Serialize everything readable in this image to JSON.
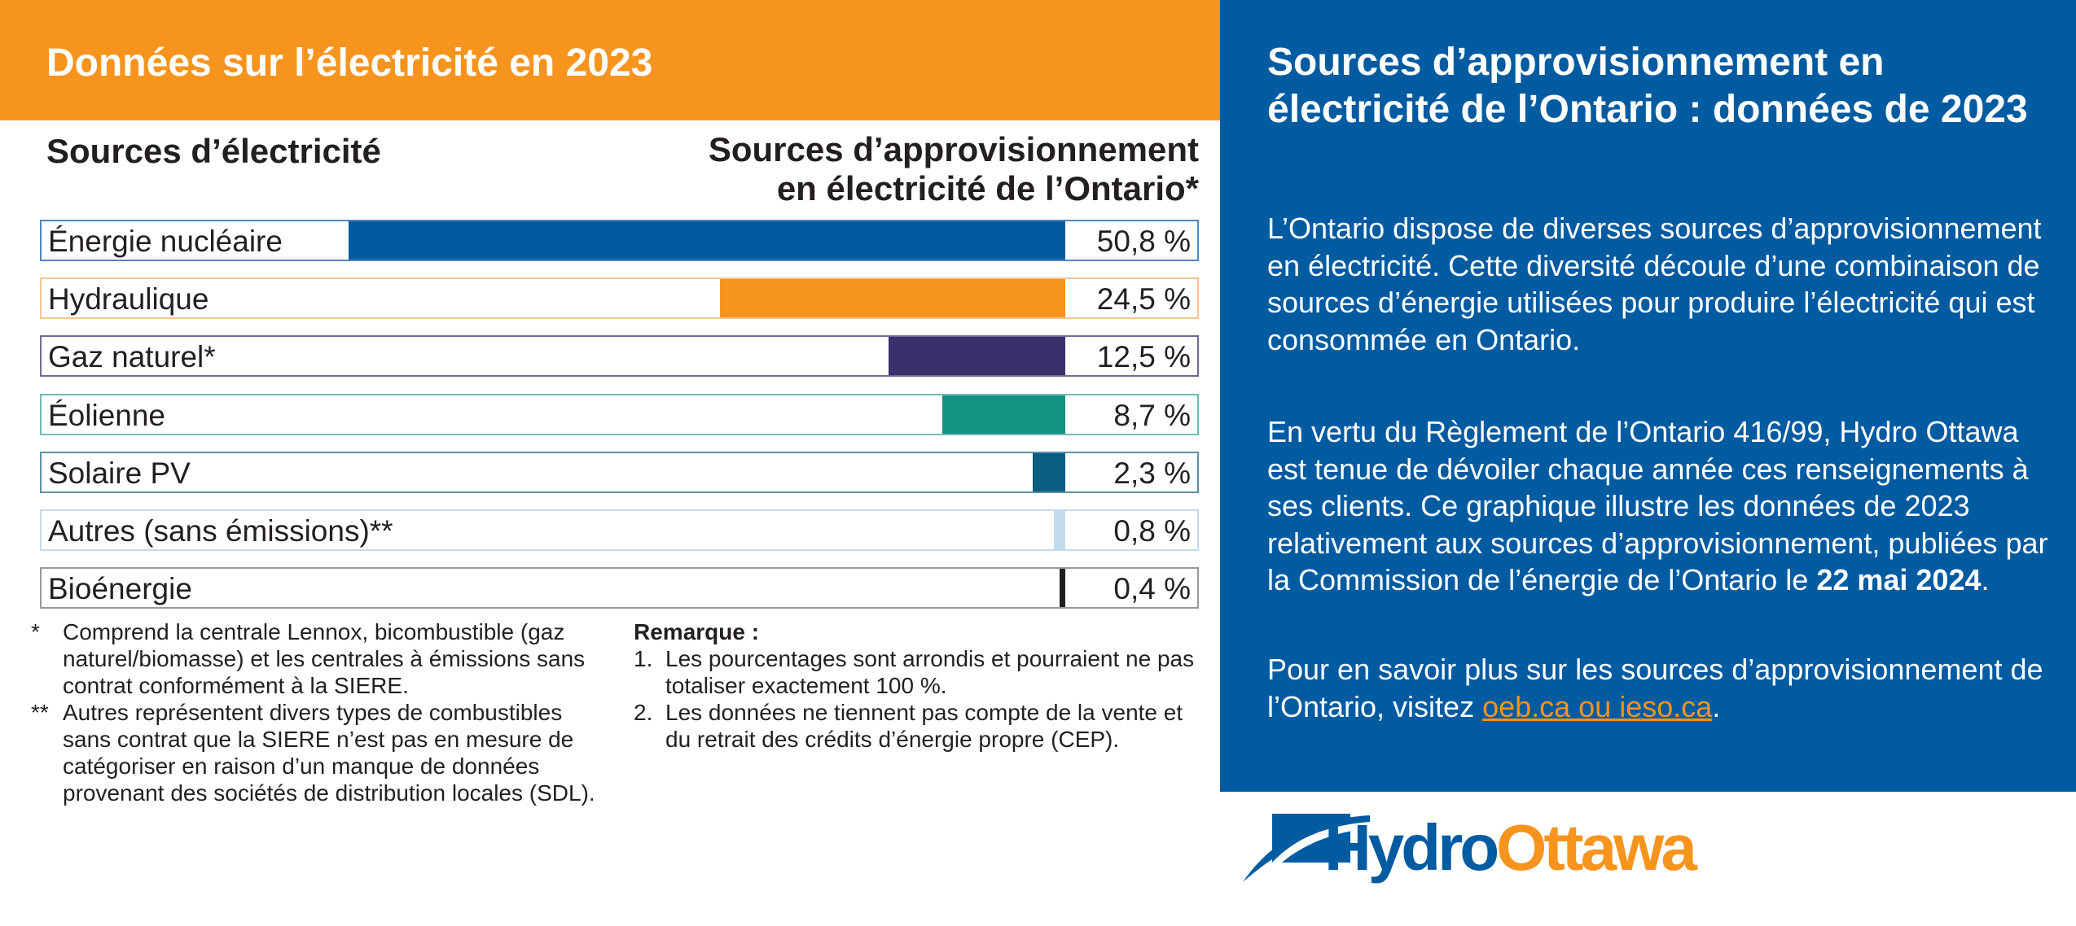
{
  "header": {
    "title": "Données sur l’électricité en 2023"
  },
  "chart_data": {
    "type": "bar",
    "orientation": "horizontal",
    "title_left": "Sources d’électricité",
    "title_right_line1": "Sources d’approvisionnement",
    "title_right_line2": "en électricité de l’Ontario*",
    "categories": [
      "Énergie nucléaire",
      "Hydraulique",
      "Gaz naturel*",
      "Éolienne",
      "Solaire PV",
      "Autres (sans émissions)**",
      "Bioénergie"
    ],
    "values": [
      50.8,
      24.5,
      12.5,
      8.7,
      2.3,
      0.8,
      0.4
    ],
    "labels": [
      "50,8 %",
      "24,5 %",
      "12,5 %",
      "8,7 %",
      "2,3 %",
      "0,8 %",
      "0,4 %"
    ],
    "colors": [
      "#005ba1",
      "#f7941e",
      "#3a2f6b",
      "#139181",
      "#0b5d82",
      "#c3dbee",
      "#1f1f1f"
    ],
    "border_colors": [
      "#4f86c0",
      "#f6c68d",
      "#6e6a97",
      "#6fbfb6",
      "#5e8ea8",
      "#c3dbee",
      "#999999"
    ],
    "xlim": [
      0,
      50.8
    ]
  },
  "footnotes": {
    "star_mark": "*",
    "star_text": "Comprend la centrale Lennox, bicombustible (gaz naturel/biomasse) et les centrales à émissions sans contrat conformément à la SIERE.",
    "dstar_mark": "**",
    "dstar_text": "Autres représentent divers types de combustibles sans contrat que la SIERE n’est pas en mesure de catégoriser en raison d’un manque de données provenant des sociétés de distribution locales (SDL)."
  },
  "remarks": {
    "title": "Remarque :",
    "item1_num": "1.",
    "item1": "Les pourcentages sont arrondis et pourraient ne pas totaliser exactement 100 %.",
    "item2_num": "2.",
    "item2": "Les données ne tiennent pas compte de la vente et du retrait des crédits d’énergie propre (CEP)."
  },
  "panel": {
    "title": "Sources d’approvisionnement en électricité de l’Ontario : données de 2023",
    "para1": "L’Ontario dispose de diverses sources d’approvisionnement en électricité. Cette diversité découle d’une combinaison de sources d’énergie utilisées pour produire l’électricité qui est consommée en Ontario.",
    "para2_start": "En vertu du Règlement de l’Ontario 416/99, Hydro Ottawa est tenue de dévoiler chaque année ces renseignements à ses clients. Ce graphique illustre les données de 2023 relativement aux sources d’approvisionnement, publiées par la Commission de l’énergie de l’Ontario le ",
    "para2_date": "22 mai 2024",
    "para2_end": ".",
    "para3_start": "Pour en savoir plus sur les sources d’approvisionnement de l’Ontario, visitez ",
    "link_text": "oeb.ca ou ieso.ca",
    "para3_end": "."
  },
  "logo": {
    "part1": "Hydro",
    "part2": "Ottawa",
    "colors": [
      "#005ba1",
      "#f7941e"
    ]
  }
}
